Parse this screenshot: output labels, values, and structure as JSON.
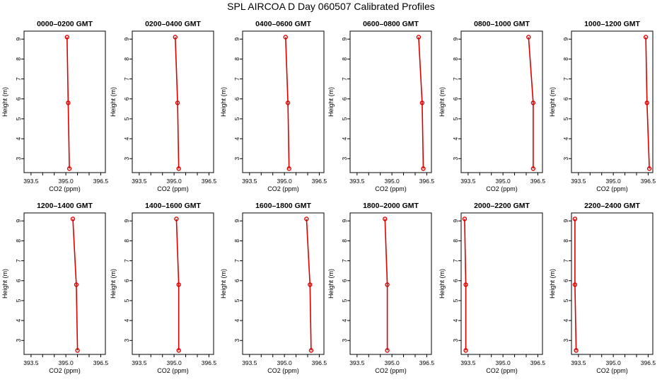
{
  "title": "SPL AIRCOA D  Day 060507  Calibrated Profiles",
  "chart_data": [
    {
      "type": "line",
      "title": "0000–0200 GMT",
      "xlabel": "CO2 (ppm)",
      "ylabel": "Height (m)",
      "x_ticks": [
        "393.5",
        "395.0",
        "396.5"
      ],
      "y_ticks": [
        "3",
        "4",
        "5",
        "6",
        "7",
        "8",
        "9"
      ],
      "xlim": [
        393.2,
        396.7
      ],
      "ylim": [
        2.3,
        9.4
      ],
      "series": [
        {
          "x": [
            395.05,
            395.1,
            395.15
          ],
          "y": [
            9.1,
            5.8,
            2.5
          ]
        }
      ]
    },
    {
      "type": "line",
      "title": "0200–0400 GMT",
      "xlabel": "CO2 (ppm)",
      "ylabel": "Height (m)",
      "x_ticks": [
        "393.5",
        "395.0",
        "396.5"
      ],
      "y_ticks": [
        "3",
        "4",
        "5",
        "6",
        "7",
        "8",
        "9"
      ],
      "xlim": [
        393.2,
        396.7
      ],
      "ylim": [
        2.3,
        9.4
      ],
      "series": [
        {
          "x": [
            395.05,
            395.15,
            395.2
          ],
          "y": [
            9.1,
            5.8,
            2.5
          ]
        }
      ]
    },
    {
      "type": "line",
      "title": "0400–0600 GMT",
      "xlabel": "CO2 (ppm)",
      "ylabel": "Height (m)",
      "x_ticks": [
        "393.5",
        "395.0",
        "396.5"
      ],
      "y_ticks": [
        "3",
        "4",
        "5",
        "6",
        "7",
        "8",
        "9"
      ],
      "xlim": [
        393.2,
        396.7
      ],
      "ylim": [
        2.3,
        9.4
      ],
      "series": [
        {
          "x": [
            395.05,
            395.15,
            395.2
          ],
          "y": [
            9.1,
            5.8,
            2.5
          ]
        }
      ]
    },
    {
      "type": "line",
      "title": "0600–0800 GMT",
      "xlabel": "CO2 (ppm)",
      "ylabel": "Height (m)",
      "x_ticks": [
        "393.5",
        "395.0",
        "396.5"
      ],
      "y_ticks": [
        "3",
        "4",
        "5",
        "6",
        "7",
        "8",
        "9"
      ],
      "xlim": [
        393.2,
        396.7
      ],
      "ylim": [
        2.3,
        9.4
      ],
      "series": [
        {
          "x": [
            396.15,
            396.3,
            396.35
          ],
          "y": [
            9.1,
            5.8,
            2.5
          ]
        }
      ]
    },
    {
      "type": "line",
      "title": "0800–1000 GMT",
      "xlabel": "CO2 (ppm)",
      "ylabel": "Height (m)",
      "x_ticks": [
        "393.5",
        "395.0",
        "396.5"
      ],
      "y_ticks": [
        "3",
        "4",
        "5",
        "6",
        "7",
        "8",
        "9"
      ],
      "xlim": [
        393.2,
        396.7
      ],
      "ylim": [
        2.3,
        9.4
      ],
      "series": [
        {
          "x": [
            396.1,
            396.3,
            396.3
          ],
          "y": [
            9.1,
            5.8,
            2.5
          ]
        }
      ]
    },
    {
      "type": "line",
      "title": "1000–1200 GMT",
      "xlabel": "CO2 (ppm)",
      "ylabel": "Height (m)",
      "x_ticks": [
        "393.5",
        "395.0",
        "396.5"
      ],
      "y_ticks": [
        "3",
        "4",
        "5",
        "6",
        "7",
        "8",
        "9"
      ],
      "xlim": [
        393.2,
        396.7
      ],
      "ylim": [
        2.3,
        9.4
      ],
      "series": [
        {
          "x": [
            396.4,
            396.45,
            396.55
          ],
          "y": [
            9.1,
            5.8,
            2.5
          ]
        }
      ]
    },
    {
      "type": "line",
      "title": "1200–1400 GMT",
      "xlabel": "CO2 (ppm)",
      "ylabel": "Height (m)",
      "x_ticks": [
        "393.5",
        "395.0",
        "396.5"
      ],
      "y_ticks": [
        "3",
        "4",
        "5",
        "6",
        "7",
        "8",
        "9"
      ],
      "xlim": [
        393.2,
        396.7
      ],
      "ylim": [
        2.3,
        9.4
      ],
      "series": [
        {
          "x": [
            395.3,
            395.45,
            395.5
          ],
          "y": [
            9.1,
            5.8,
            2.5
          ]
        }
      ]
    },
    {
      "type": "line",
      "title": "1400–1600 GMT",
      "xlabel": "CO2 (ppm)",
      "ylabel": "Height (m)",
      "x_ticks": [
        "393.5",
        "395.0",
        "396.5"
      ],
      "y_ticks": [
        "3",
        "4",
        "5",
        "6",
        "7",
        "8",
        "9"
      ],
      "xlim": [
        393.2,
        396.7
      ],
      "ylim": [
        2.3,
        9.4
      ],
      "series": [
        {
          "x": [
            395.1,
            395.2,
            395.2
          ],
          "y": [
            9.1,
            5.8,
            2.5
          ]
        }
      ]
    },
    {
      "type": "line",
      "title": "1600–1800 GMT",
      "xlabel": "CO2 (ppm)",
      "ylabel": "Height (m)",
      "x_ticks": [
        "393.5",
        "395.0",
        "396.5"
      ],
      "y_ticks": [
        "3",
        "4",
        "5",
        "6",
        "7",
        "8",
        "9"
      ],
      "xlim": [
        393.2,
        396.7
      ],
      "ylim": [
        2.3,
        9.4
      ],
      "series": [
        {
          "x": [
            395.95,
            396.1,
            396.15
          ],
          "y": [
            9.1,
            5.8,
            2.5
          ]
        }
      ]
    },
    {
      "type": "line",
      "title": "1800–2000 GMT",
      "xlabel": "CO2 (ppm)",
      "ylabel": "Height (m)",
      "x_ticks": [
        "393.5",
        "395.0",
        "396.5"
      ],
      "y_ticks": [
        "3",
        "4",
        "5",
        "6",
        "7",
        "8",
        "9"
      ],
      "xlim": [
        393.2,
        396.7
      ],
      "ylim": [
        2.3,
        9.4
      ],
      "series": [
        {
          "x": [
            394.7,
            394.8,
            394.8
          ],
          "y": [
            9.1,
            5.8,
            2.5
          ]
        }
      ]
    },
    {
      "type": "line",
      "title": "2000–2200 GMT",
      "xlabel": "CO2 (ppm)",
      "ylabel": "Height (m)",
      "x_ticks": [
        "393.5",
        "395.0",
        "396.5"
      ],
      "y_ticks": [
        "3",
        "4",
        "5",
        "6",
        "7",
        "8",
        "9"
      ],
      "xlim": [
        393.2,
        396.7
      ],
      "ylim": [
        2.3,
        9.4
      ],
      "series": [
        {
          "x": [
            393.35,
            393.4,
            393.4
          ],
          "y": [
            9.1,
            5.8,
            2.5
          ]
        }
      ]
    },
    {
      "type": "line",
      "title": "2200–2400 GMT",
      "xlabel": "CO2 (ppm)",
      "ylabel": "Height (m)",
      "x_ticks": [
        "393.5",
        "395.0",
        "396.5"
      ],
      "y_ticks": [
        "3",
        "4",
        "5",
        "6",
        "7",
        "8",
        "9"
      ],
      "xlim": [
        393.2,
        396.7
      ],
      "ylim": [
        2.3,
        9.4
      ],
      "series": [
        {
          "x": [
            393.35,
            393.35,
            393.4
          ],
          "y": [
            9.1,
            5.8,
            2.5
          ]
        }
      ]
    }
  ],
  "colors": {
    "series": "#dd0000",
    "axis": "#000000"
  }
}
